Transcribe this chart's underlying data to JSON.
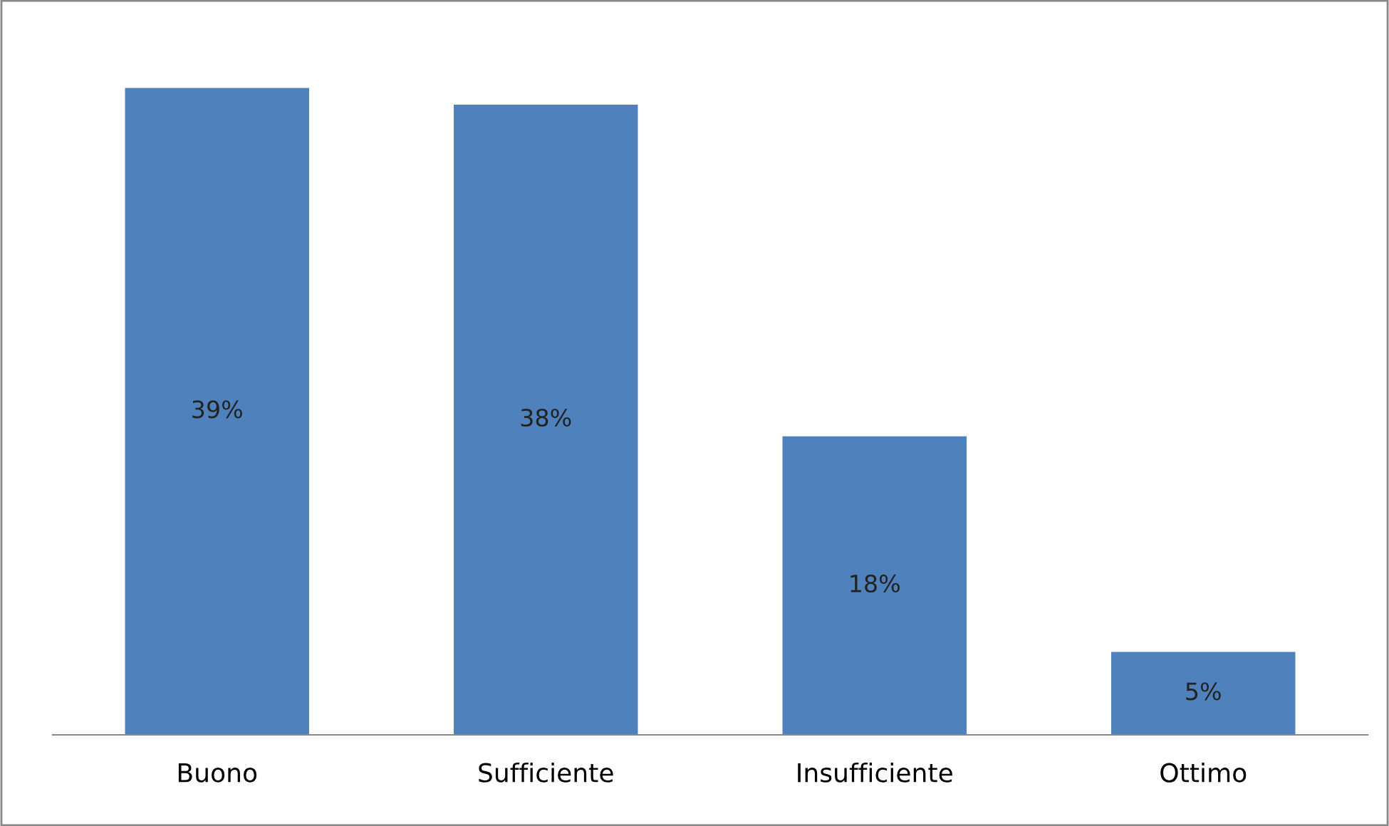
{
  "chart_data": {
    "type": "bar",
    "categories": [
      "Buono",
      "Sufficiente",
      "Insufficiente",
      "Ottimo"
    ],
    "values": [
      39,
      38,
      18,
      5
    ],
    "value_labels": [
      "39%",
      "38%",
      "18%",
      "5%"
    ],
    "color": "#4f81bd",
    "grid": false,
    "legend": false
  }
}
